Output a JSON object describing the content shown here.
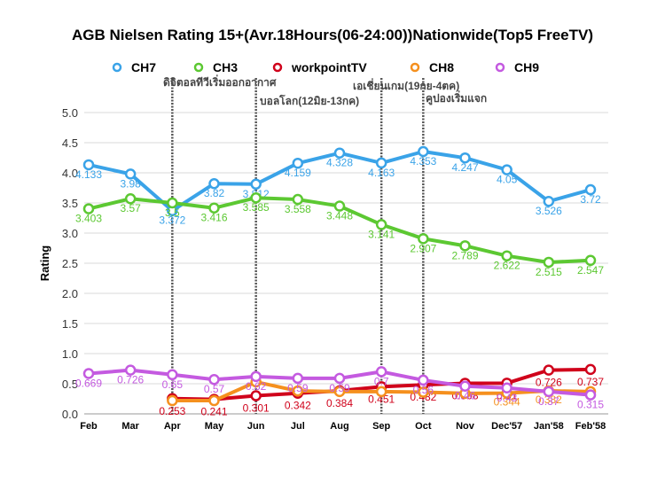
{
  "chart_data": {
    "type": "line",
    "title": "AGB Nielsen Rating 15+(Avr.18Hours(06-24:00))Nationwide(Top5 FreeTV)",
    "ylabel": "Rating",
    "xlabel": "",
    "ylim": [
      0,
      5
    ],
    "yticks": [
      "0.0",
      "0.5",
      "1.0",
      "1.5",
      "2.0",
      "2.5",
      "3.0",
      "3.5",
      "4.0",
      "4.5",
      "5.0"
    ],
    "categories": [
      "Feb",
      "Mar",
      "Apr",
      "May",
      "Jun",
      "Jul",
      "Aug",
      "Sep",
      "Oct",
      "Nov",
      "Dec'57",
      "Jan'58",
      "Feb'58"
    ],
    "grid": true,
    "legend_position": "top",
    "series": [
      {
        "name": "CH7",
        "color": "#3aa3e8",
        "values": [
          4.133,
          3.98,
          3.372,
          3.82,
          3.812,
          4.159,
          4.328,
          4.163,
          4.353,
          4.247,
          4.05,
          3.526,
          3.72
        ],
        "labels": [
          "4.133",
          "3.98",
          "3.372",
          "3.82",
          "3.812",
          "4.159",
          "4.328",
          "4.163",
          "4.353",
          "4.247",
          "4.05",
          "3.526",
          "3.72"
        ]
      },
      {
        "name": "CH3",
        "color": "#5cc832",
        "values": [
          3.403,
          3.57,
          3.5,
          3.416,
          3.585,
          3.558,
          3.448,
          3.141,
          2.907,
          2.789,
          2.622,
          2.515,
          2.547
        ],
        "labels": [
          "3.403",
          "3.57",
          "3.5",
          "3.416",
          "3.585",
          "3.558",
          "3.448",
          "3.141",
          "2.907",
          "2.789",
          "2.622",
          "2.515",
          "2.547"
        ]
      },
      {
        "name": "workpointTV",
        "color": "#d0021b",
        "values": [
          null,
          null,
          0.253,
          0.241,
          0.301,
          0.342,
          0.384,
          0.451,
          0.482,
          0.508,
          0.51,
          0.726,
          0.737
        ],
        "labels": [
          "",
          "",
          "0.253",
          "0.241",
          "0.301",
          "0.342",
          "0.384",
          "0.451",
          "0.482",
          "0.508",
          "0.51",
          "0.726",
          "0.737"
        ]
      },
      {
        "name": "CH8",
        "color": "#f5901e",
        "values": [
          null,
          null,
          0.22,
          0.22,
          0.53,
          0.38,
          0.37,
          0.37,
          0.36,
          0.34,
          0.344,
          0.382,
          0.37
        ],
        "labels": [
          "",
          "",
          "",
          "",
          "",
          "",
          "",
          "",
          "",
          "",
          "0.344",
          "0.382",
          ""
        ]
      },
      {
        "name": "CH9",
        "color": "#c45ae0",
        "values": [
          0.669,
          0.726,
          0.65,
          0.57,
          0.62,
          0.59,
          0.59,
          0.7,
          0.56,
          0.46,
          0.43,
          0.37,
          0.315
        ],
        "labels": [
          "0.669",
          "0.726",
          "0.65",
          "0.57",
          "0.62",
          "0.59",
          "0.59",
          "0.7",
          "0.56",
          "0.46",
          "0.43",
          "0.37",
          "0.315"
        ]
      }
    ],
    "annotations": [
      {
        "text": "ดิจิตอลทีวีเริ่มออกอากาศ",
        "at": "Apr"
      },
      {
        "text": "บอลโลก(12มิย-13กค)",
        "at": "Jun"
      },
      {
        "text": "เอเชี่ยนเกม(19กย-4ตค)",
        "at": "Sep"
      },
      {
        "text": "คูปองเริ่มแจก",
        "at": "Oct"
      }
    ]
  }
}
